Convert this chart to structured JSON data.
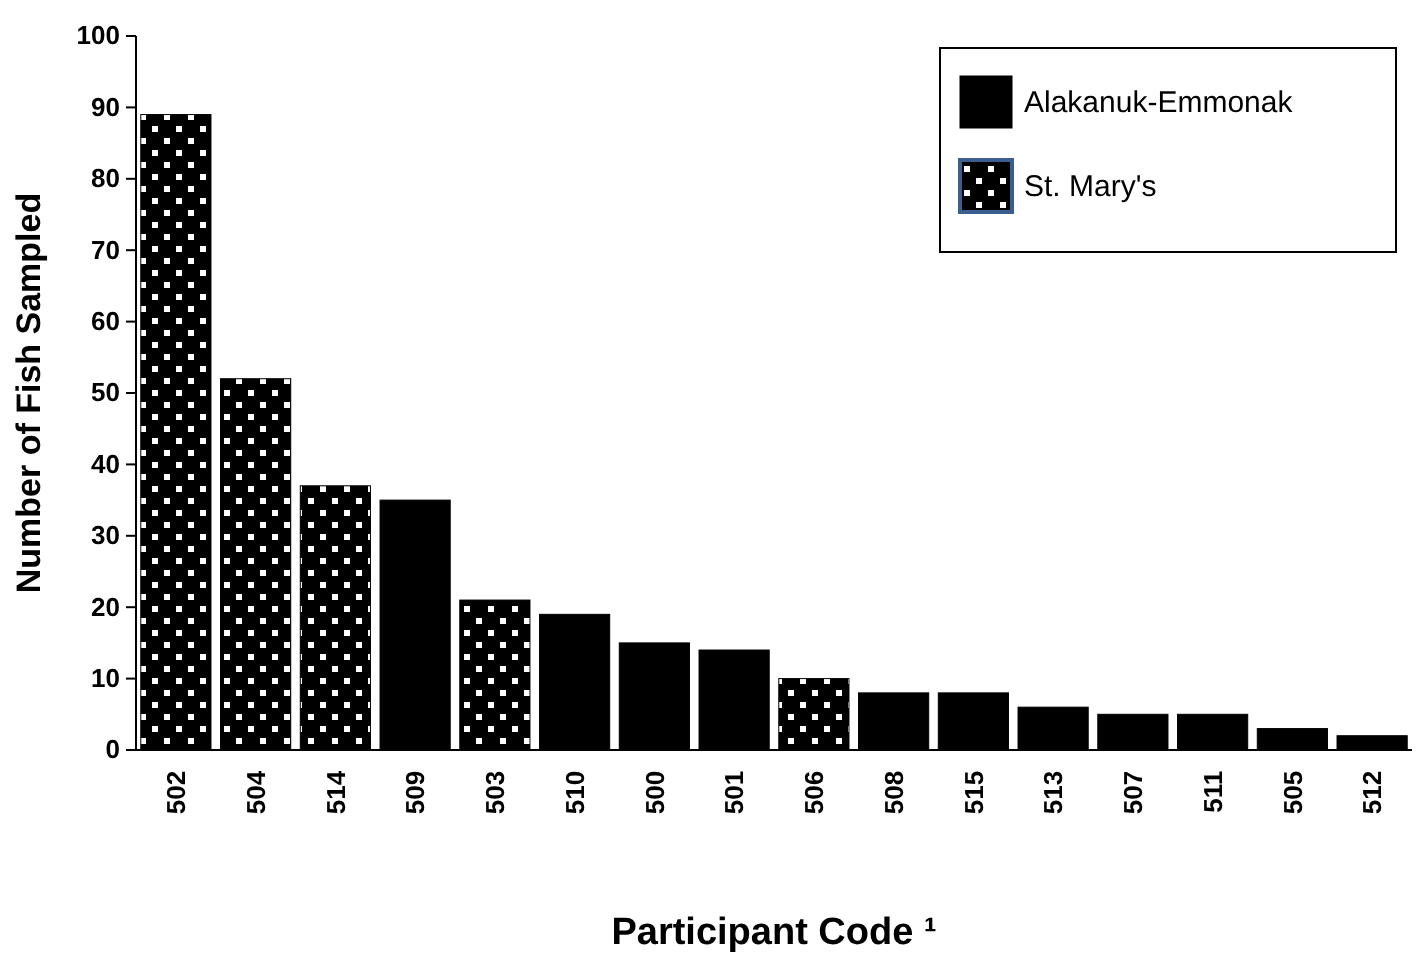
{
  "chart_data": {
    "type": "bar",
    "xlabel": "Participant Code ¹",
    "ylabel": "Number of Fish Sampled",
    "categories": [
      "502",
      "504",
      "514",
      "509",
      "503",
      "510",
      "500",
      "501",
      "506",
      "508",
      "515",
      "513",
      "507",
      "511",
      "505",
      "512"
    ],
    "series": [
      {
        "name": "Alakanuk-Emmonak",
        "color": "#000000",
        "values": [
          null,
          null,
          null,
          35,
          null,
          19,
          15,
          14,
          null,
          8,
          8,
          6,
          5,
          5,
          3,
          2
        ]
      },
      {
        "name": "St. Mary's",
        "color": "#000000",
        "values": [
          89,
          52,
          37,
          null,
          21,
          null,
          null,
          null,
          10,
          null,
          null,
          null,
          null,
          null,
          null,
          null
        ]
      }
    ],
    "ylim": [
      0,
      100
    ],
    "yticks": [
      0,
      10,
      20,
      30,
      40,
      50,
      60,
      70,
      80,
      90,
      100
    ],
    "grid": false,
    "legend": "top right"
  }
}
